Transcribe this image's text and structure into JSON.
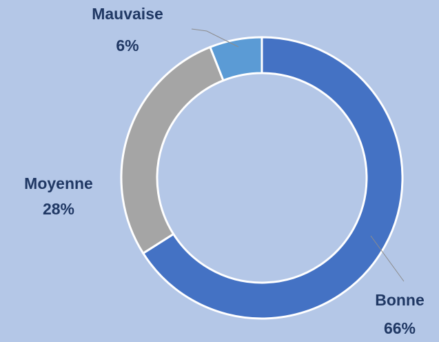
{
  "chart_data": {
    "type": "donut",
    "categories": [
      "Bonne",
      "Moyenne",
      "Mauvaise"
    ],
    "values": [
      66,
      28,
      6
    ],
    "value_labels": [
      "66%",
      "28%",
      "6%"
    ],
    "colors": [
      "#4472c4",
      "#a5a5a5",
      "#5b9bd5"
    ]
  }
}
